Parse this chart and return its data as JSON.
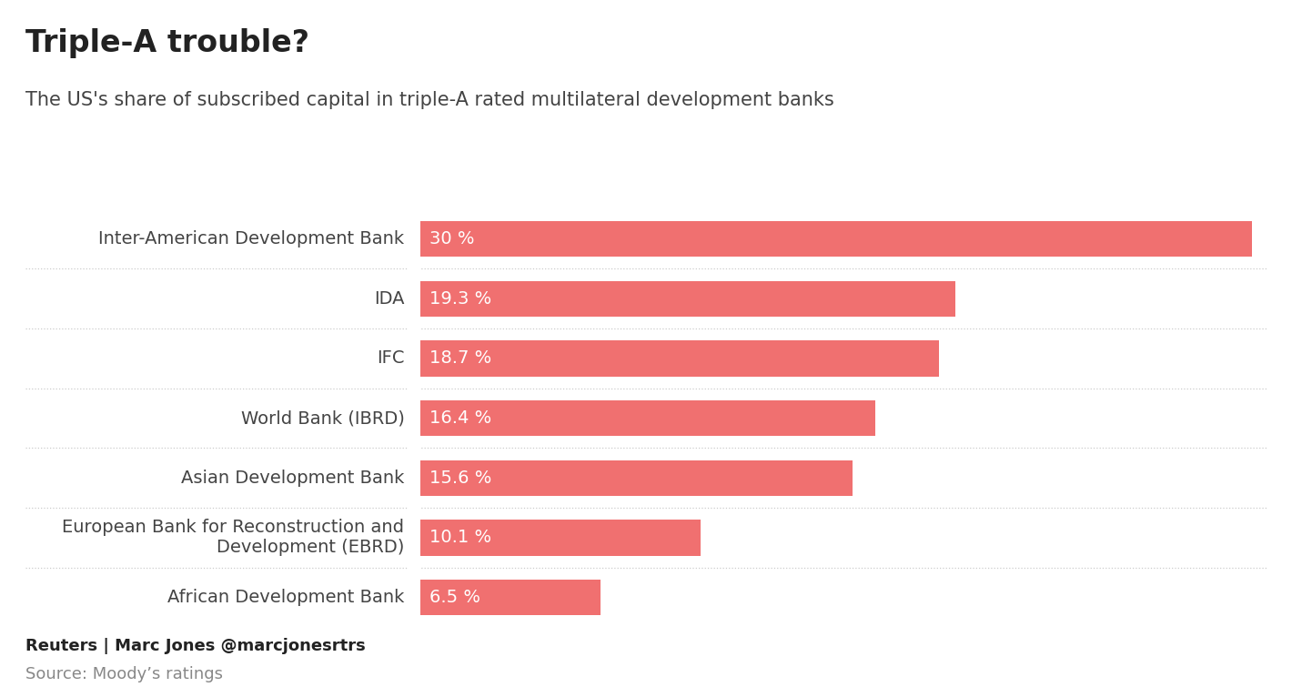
{
  "title": "Triple-A trouble?",
  "subtitle": "The US's share of subscribed capital in triple-A rated multilateral development banks",
  "categories": [
    "Inter-American Development Bank",
    "IDA",
    "IFC",
    "World Bank (IBRD)",
    "Asian Development Bank",
    "European Bank for Reconstruction and\nDevelopment (EBRD)",
    "African Development Bank"
  ],
  "values": [
    30.0,
    19.3,
    18.7,
    16.4,
    15.6,
    10.1,
    6.5
  ],
  "labels": [
    "30 %",
    "19.3 %",
    "18.7 %",
    "16.4 %",
    "15.6 %",
    "10.1 %",
    "6.5 %"
  ],
  "bar_color": "#F07070",
  "background_color": "#FFFFFF",
  "text_color": "#444444",
  "label_color": "#FFFFFF",
  "footer_line1": "Reuters | Marc Jones @marcjonesrtrs",
  "footer_line2": "Source: Moody’s ratings",
  "xlim": [
    0,
    30.5
  ],
  "title_fontsize": 24,
  "subtitle_fontsize": 15,
  "category_fontsize": 14,
  "label_fontsize": 14,
  "footer_fontsize": 13
}
